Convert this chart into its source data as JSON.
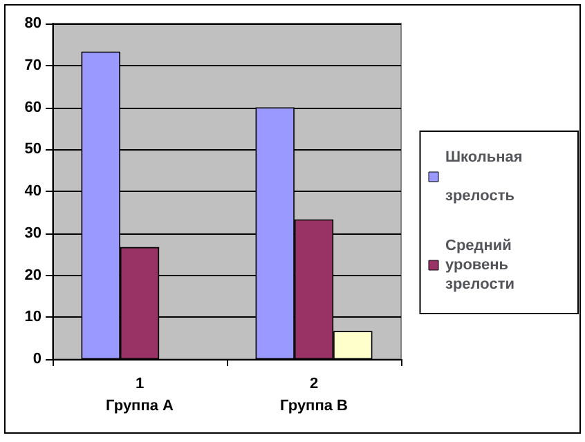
{
  "chart_data": {
    "type": "bar",
    "categories": [
      "1\nГруппа А",
      "2\nГруппа В"
    ],
    "series": [
      {
        "name": "Школьная зрелость",
        "color": "#9999ff",
        "values": [
          73.3,
          60
        ]
      },
      {
        "name": "Средний уровень зрелости",
        "color": "#993366",
        "values": [
          26.7,
          33.3
        ]
      },
      {
        "color": "#ffffcc",
        "values": [
          null,
          6.7
        ]
      }
    ],
    "ylim": [
      0,
      80
    ],
    "yticks": [
      0,
      10,
      20,
      30,
      40,
      50,
      60,
      70,
      80
    ],
    "grid": "y",
    "legend": "right"
  }
}
